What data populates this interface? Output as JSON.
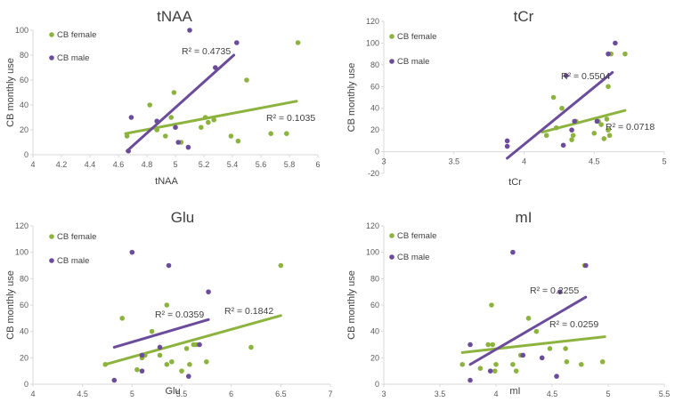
{
  "colors": {
    "female": "#8DB33F",
    "male": "#6B4C9A",
    "axis": "#d9d9d9",
    "text": "#404040"
  },
  "chart_data": [
    {
      "type": "scatter",
      "title": "tNAA",
      "xlabel": "tNAA",
      "ylabel": "CB monthly use",
      "xlim": [
        4,
        6
      ],
      "xticks": [
        4,
        4.2,
        4.4,
        4.6,
        4.8,
        5,
        5.2,
        5.4,
        5.6,
        5.8,
        6
      ],
      "xtick_labels": [
        "4",
        "4.2",
        "4.4",
        "4.6",
        "4.8",
        "5",
        "5.2",
        "5.4",
        "5.6",
        "5.8",
        "6"
      ],
      "ylim": [
        0,
        100
      ],
      "yticks": [
        0,
        20,
        40,
        60,
        80,
        100
      ],
      "ytick_labels": [
        "0",
        "20",
        "40",
        "60",
        "80",
        "100"
      ],
      "legend": [
        "CB female",
        "CB male"
      ],
      "series": [
        {
          "name": "CB female",
          "color": "#8DB33F",
          "x": [
            4.66,
            4.82,
            4.87,
            4.93,
            4.97,
            4.99,
            5.04,
            5.18,
            5.21,
            5.23,
            5.27,
            5.39,
            5.44,
            5.5,
            5.67,
            5.78,
            5.86
          ],
          "y": [
            15,
            40,
            20,
            15,
            30,
            50,
            10,
            22,
            30,
            26,
            28,
            15,
            11,
            60,
            17,
            17,
            90
          ],
          "trend": [
            [
              4.65,
              17
            ],
            [
              5.85,
              43
            ]
          ],
          "r2_label": "R² = 0.1035"
        },
        {
          "name": "CB male",
          "color": "#6B4C9A",
          "x": [
            4.67,
            4.69,
            4.87,
            5.0,
            5.02,
            5.09,
            5.1,
            5.28,
            5.43
          ],
          "y": [
            3,
            30,
            27,
            22,
            10,
            6,
            100,
            70,
            90
          ],
          "trend": [
            [
              4.66,
              3
            ],
            [
              5.41,
              80
            ]
          ],
          "r2_label": "R² = 0.4735"
        }
      ]
    },
    {
      "type": "scatter",
      "title": "tCr",
      "xlabel": "tCr",
      "ylabel": "CB monthly use",
      "xlim": [
        3,
        5
      ],
      "xticks": [
        3,
        3.5,
        4,
        4.5,
        5
      ],
      "xtick_labels": [
        "3",
        "3.5",
        "4",
        "4.5",
        "5"
      ],
      "ylim": [
        -20,
        120
      ],
      "yticks": [
        -20,
        0,
        20,
        40,
        60,
        80,
        100,
        120
      ],
      "ytick_labels": [
        "-20",
        "0",
        "20",
        "40",
        "60",
        "80",
        "100",
        "120"
      ],
      "legend": [
        "CB female",
        "CB male"
      ],
      "series": [
        {
          "name": "CB female",
          "color": "#8DB33F",
          "x": [
            4.16,
            4.21,
            4.23,
            4.27,
            4.34,
            4.35,
            4.37,
            4.5,
            4.53,
            4.55,
            4.57,
            4.59,
            4.61,
            4.6,
            4.62,
            4.72,
            4.6
          ],
          "y": [
            15,
            50,
            22,
            40,
            11,
            15,
            28,
            17,
            28,
            25,
            12,
            30,
            15,
            60,
            90,
            90,
            20
          ],
          "trend": [
            [
              4.13,
              18
            ],
            [
              4.72,
              38
            ]
          ],
          "r2_label": "R² = 0.0718"
        },
        {
          "name": "CB male",
          "color": "#6B4C9A",
          "x": [
            3.88,
            3.88,
            4.28,
            4.3,
            4.34,
            4.36,
            4.52,
            4.6,
            4.65
          ],
          "y": [
            5,
            10,
            6,
            70,
            20,
            28,
            28,
            90,
            100
          ],
          "trend": [
            [
              3.88,
              -6
            ],
            [
              4.63,
              73
            ]
          ],
          "r2_label": "R² = 0.5504"
        }
      ]
    },
    {
      "type": "scatter",
      "title": "Glu",
      "xlabel": "Glu",
      "ylabel": "CB monthly use",
      "xlim": [
        4,
        7
      ],
      "xticks": [
        4,
        4.5,
        5,
        5.5,
        6,
        6.5,
        7
      ],
      "xtick_labels": [
        "4",
        "4.5",
        "5",
        "5.5",
        "6",
        "6.5",
        "7"
      ],
      "ylim": [
        0,
        120
      ],
      "yticks": [
        0,
        20,
        40,
        60,
        80,
        100,
        120
      ],
      "ytick_labels": [
        "0",
        "20",
        "40",
        "60",
        "80",
        "100",
        "120"
      ],
      "legend": [
        "CB female",
        "CB male"
      ],
      "series": [
        {
          "name": "CB female",
          "color": "#8DB33F",
          "x": [
            4.73,
            4.9,
            5.05,
            5.1,
            5.13,
            5.2,
            5.28,
            5.35,
            5.4,
            5.5,
            5.55,
            5.58,
            5.62,
            5.65,
            5.35,
            5.75,
            6.2,
            6.5
          ],
          "y": [
            15,
            50,
            11,
            20,
            22,
            40,
            22,
            15,
            17,
            10,
            27,
            15,
            30,
            30,
            60,
            17,
            28,
            90
          ],
          "trend": [
            [
              4.73,
              15
            ],
            [
              6.5,
              52
            ]
          ],
          "r2_label": "R² = 0.1842"
        },
        {
          "name": "CB male",
          "color": "#6B4C9A",
          "x": [
            4.82,
            5.0,
            5.1,
            5.1,
            5.28,
            5.37,
            5.57,
            5.68,
            5.77
          ],
          "y": [
            3,
            100,
            22,
            10,
            28,
            90,
            6,
            30,
            70
          ],
          "trend": [
            [
              4.82,
              28
            ],
            [
              5.77,
              49
            ]
          ],
          "r2_label": "R² = 0.0359"
        }
      ]
    },
    {
      "type": "scatter",
      "title": "mI",
      "xlabel": "mI",
      "ylabel": "CB monthly use",
      "xlim": [
        3,
        5.5
      ],
      "xticks": [
        3,
        3.5,
        4,
        4.5,
        5,
        5.5
      ],
      "xtick_labels": [
        "3",
        "3.5",
        "4",
        "4.5",
        "5",
        "5.5"
      ],
      "ylim": [
        0,
        120
      ],
      "yticks": [
        0,
        20,
        40,
        60,
        80,
        100,
        120
      ],
      "ytick_labels": [
        "0",
        "20",
        "40",
        "60",
        "80",
        "100",
        "120"
      ],
      "legend": [
        "CB female",
        "CB male"
      ],
      "series": [
        {
          "name": "CB female",
          "color": "#8DB33F",
          "x": [
            3.7,
            3.86,
            3.93,
            3.96,
            3.97,
            4.0,
            4.15,
            4.22,
            4.29,
            4.36,
            4.48,
            4.62,
            4.63,
            4.76,
            4.79,
            4.95,
            4.18,
            3.99
          ],
          "y": [
            15,
            12,
            30,
            60,
            30,
            15,
            15,
            22,
            50,
            40,
            27,
            27,
            17,
            15,
            90,
            17,
            10,
            10
          ],
          "trend": [
            [
              3.7,
              24
            ],
            [
              4.97,
              36
            ]
          ],
          "r2_label": "R² = 0.0259"
        },
        {
          "name": "CB male",
          "color": "#6B4C9A",
          "x": [
            3.77,
            3.77,
            3.95,
            4.15,
            4.24,
            4.41,
            4.54,
            4.57,
            4.8
          ],
          "y": [
            3,
            30,
            10,
            100,
            22,
            20,
            6,
            70,
            90
          ],
          "trend": [
            [
              3.77,
              15
            ],
            [
              4.8,
              66
            ]
          ],
          "r2_label": "R² = 0.2255"
        }
      ]
    }
  ]
}
